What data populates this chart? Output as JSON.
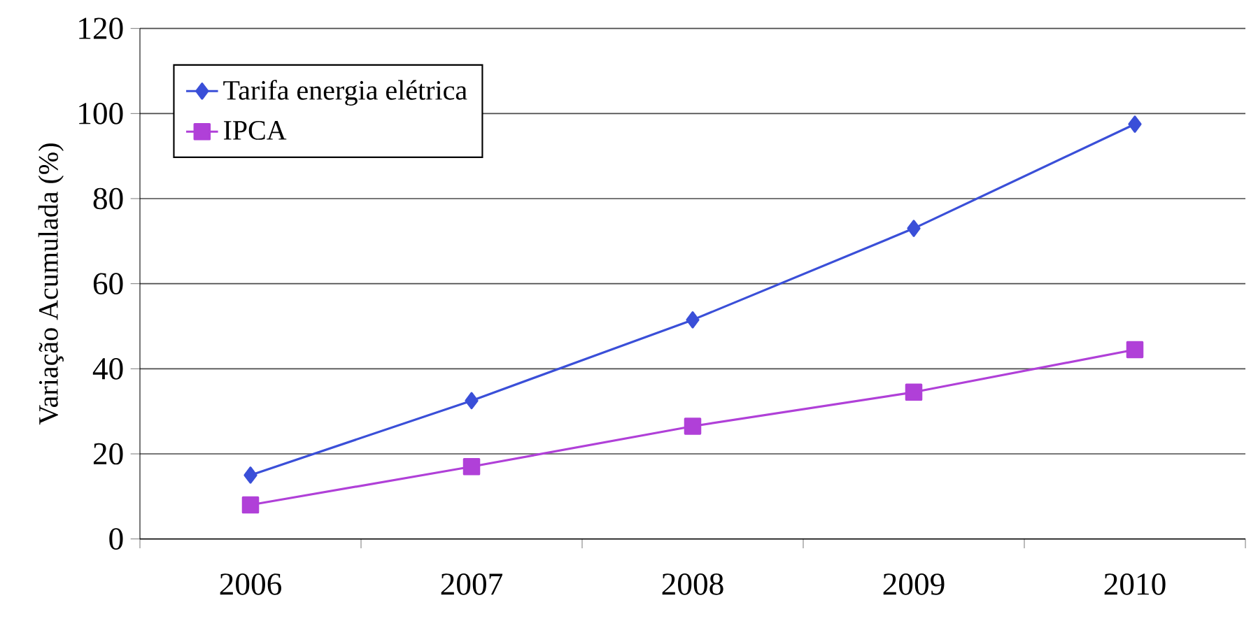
{
  "chart_data": {
    "type": "line",
    "ylabel": "Variação Acumulada (%)",
    "categories": [
      "2006",
      "2007",
      "2008",
      "2009",
      "2010"
    ],
    "series": [
      {
        "name": "Tarifa energia elétrica",
        "color": "#3a4fd8",
        "marker": "diamond",
        "values": [
          15,
          32.5,
          51.5,
          73,
          97.5
        ]
      },
      {
        "name": "IPCA",
        "color": "#b040d8",
        "marker": "square",
        "values": [
          8,
          17,
          26.5,
          34.5,
          44.5
        ]
      }
    ],
    "ylim": [
      0,
      120
    ],
    "yticks": [
      0,
      20,
      40,
      60,
      80,
      100,
      120
    ],
    "grid": "y",
    "legend": "top left"
  }
}
